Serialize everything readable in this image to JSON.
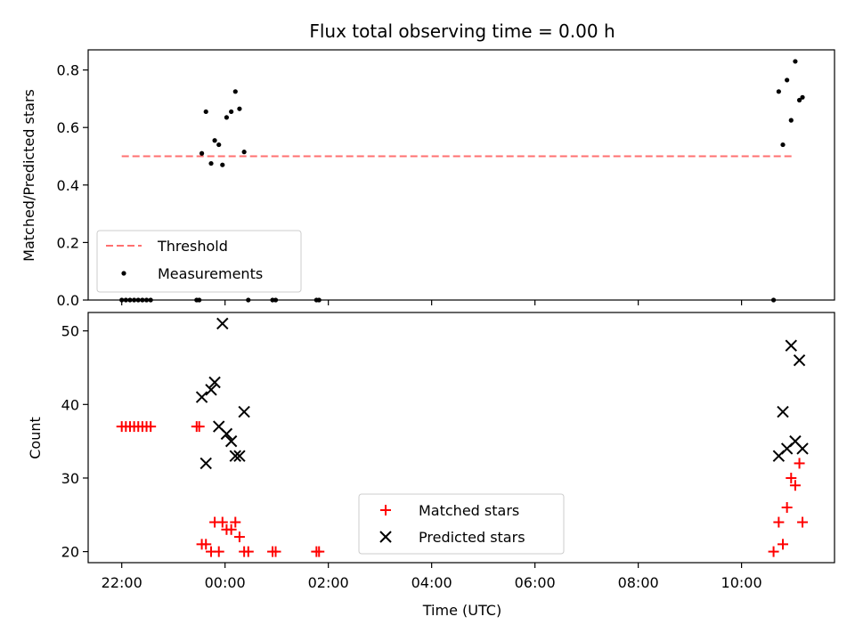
{
  "chart_data": [
    {
      "type": "scatter",
      "title": "Flux total observing time = 0.00 h",
      "xlabel": "",
      "ylabel": "Matched/Predicted stars",
      "ylim": [
        0,
        0.87
      ],
      "yticks": [
        "0.0",
        "0.2",
        "0.4",
        "0.6",
        "0.8"
      ],
      "ytick_values": [
        0,
        0.2,
        0.4,
        0.6,
        0.8
      ],
      "x_unit": "hours (UTC) relative to 00:00",
      "legend": {
        "location": "lower-left",
        "entries": [
          "Threshold",
          "Measurements"
        ]
      },
      "threshold": {
        "name": "Threshold",
        "value": 0.5,
        "x_from": -2.0,
        "x_to": 11.0,
        "color": "#ff7070",
        "style": "dashed"
      },
      "series": [
        {
          "name": "Measurements",
          "marker": "dot",
          "color": "#000000",
          "x": [
            -2.0,
            -1.92,
            -1.84,
            -1.76,
            -1.68,
            -1.6,
            -1.52,
            -1.44,
            -0.55,
            -0.5,
            -0.45,
            -0.37,
            -0.27,
            -0.2,
            -0.12,
            -0.05,
            0.03,
            0.12,
            0.2,
            0.28,
            0.37,
            0.45,
            0.92,
            0.98,
            1.77,
            1.82,
            10.62,
            10.72,
            10.8,
            10.88,
            10.96,
            11.04,
            11.12,
            11.18
          ],
          "y": [
            0,
            0,
            0,
            0,
            0,
            0,
            0,
            0,
            0,
            0,
            0.51,
            0.655,
            0.475,
            0.555,
            0.54,
            0.47,
            0.635,
            0.655,
            0.725,
            0.665,
            0.515,
            0,
            0,
            0,
            0,
            0,
            0,
            0.725,
            0.54,
            0.765,
            0.625,
            0.83,
            0.695,
            0.705
          ]
        }
      ]
    },
    {
      "type": "scatter",
      "title": "",
      "xlabel": "Time (UTC)",
      "ylabel": "Count",
      "ylim": [
        18.5,
        52.5
      ],
      "yticks": [
        "20",
        "30",
        "40",
        "50"
      ],
      "ytick_values": [
        20,
        30,
        40,
        50
      ],
      "xticks": [
        "22:00",
        "00:00",
        "02:00",
        "04:00",
        "06:00",
        "08:00",
        "10:00"
      ],
      "xtick_values": [
        -2,
        0,
        2,
        4,
        6,
        8,
        10
      ],
      "xlim": [
        -2.65,
        11.8
      ],
      "legend": {
        "location": "lower-center",
        "entries": [
          "Matched stars",
          "Predicted stars"
        ]
      },
      "series": [
        {
          "name": "Matched stars",
          "marker": "plus",
          "color": "#ff0000",
          "x": [
            -2.0,
            -1.92,
            -1.84,
            -1.76,
            -1.68,
            -1.6,
            -1.52,
            -1.44,
            -0.55,
            -0.5,
            -0.45,
            -0.37,
            -0.27,
            -0.2,
            -0.12,
            -0.05,
            0.03,
            0.12,
            0.2,
            0.28,
            0.37,
            0.45,
            0.92,
            0.98,
            1.77,
            1.82,
            10.62,
            10.72,
            10.8,
            10.88,
            10.96,
            11.04,
            11.12,
            11.18
          ],
          "y": [
            37,
            37,
            37,
            37,
            37,
            37,
            37,
            37,
            37,
            37,
            21,
            21,
            20,
            24,
            20,
            24,
            23,
            23,
            24,
            22,
            20,
            20,
            20,
            20,
            20,
            20,
            20,
            24,
            21,
            26,
            30,
            29,
            32,
            24
          ]
        },
        {
          "name": "Predicted stars",
          "marker": "x",
          "color": "#000000",
          "x": [
            -0.45,
            -0.37,
            -0.27,
            -0.2,
            -0.12,
            -0.05,
            0.03,
            0.12,
            0.2,
            0.28,
            0.37,
            10.72,
            10.8,
            10.88,
            10.96,
            11.04,
            11.12,
            11.18
          ],
          "y": [
            41,
            32,
            42,
            43,
            37,
            51,
            36,
            35,
            33,
            33,
            39,
            33,
            39,
            34,
            48,
            35,
            46,
            34
          ]
        }
      ]
    }
  ]
}
